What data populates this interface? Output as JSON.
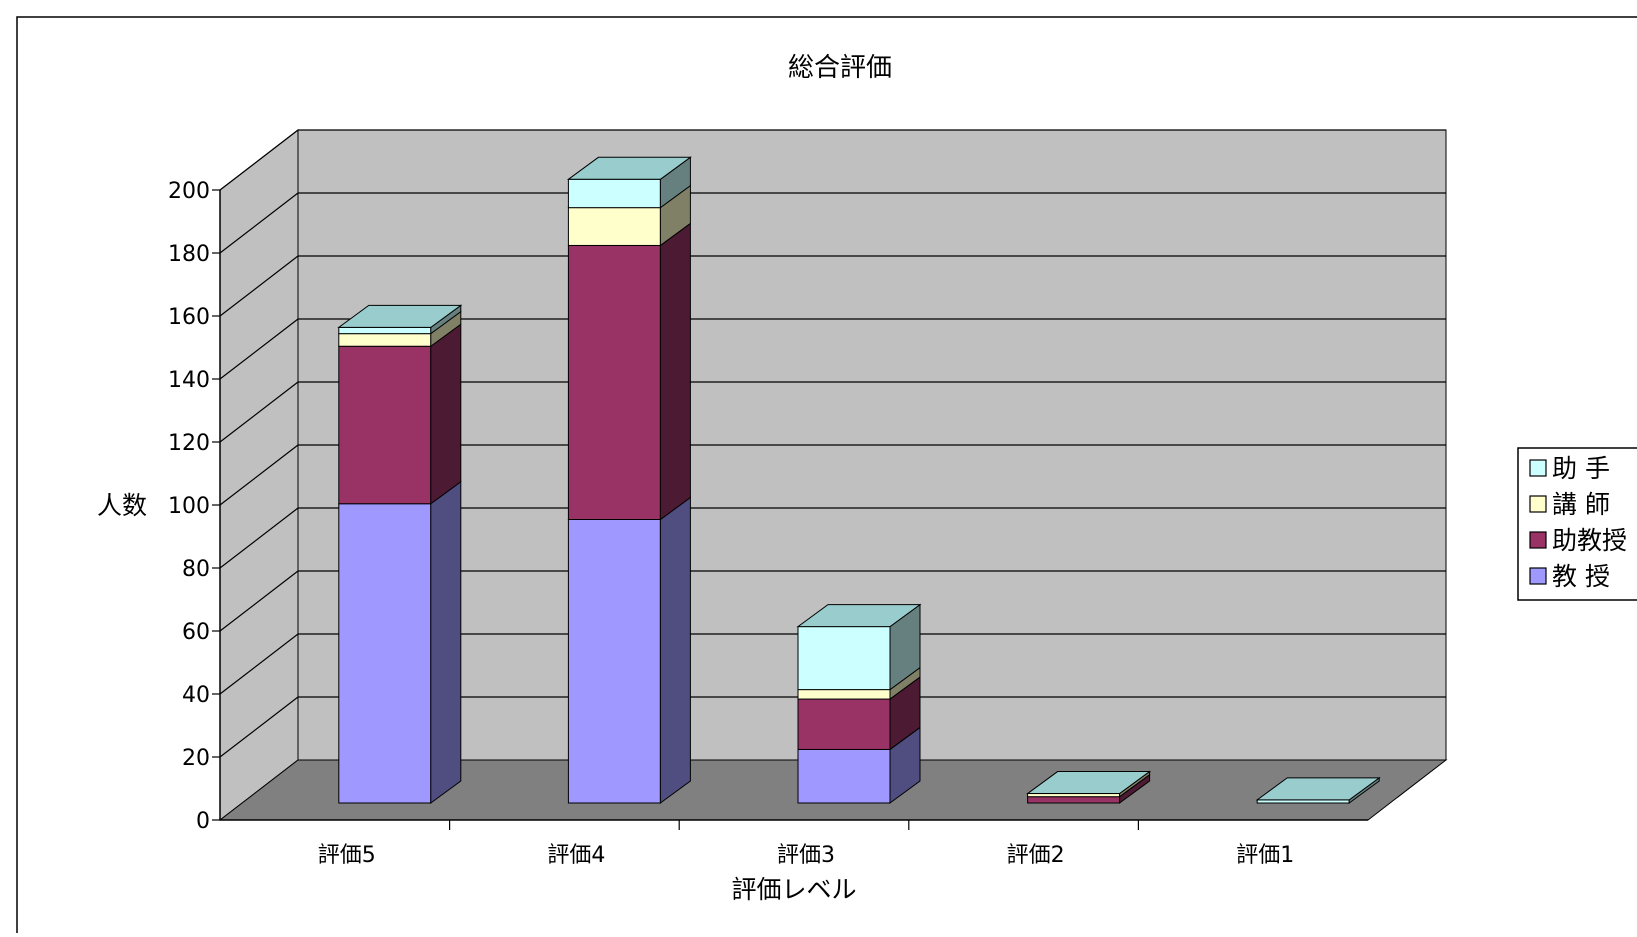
{
  "chart_data": {
    "type": "bar",
    "stacked": true,
    "view": "3d",
    "title": "総合評価",
    "xlabel": "評価レベル",
    "ylabel": "人数",
    "ylim": [
      0,
      200
    ],
    "ytick_step": 20,
    "yticks": [
      "0",
      "20",
      "40",
      "60",
      "80",
      "100",
      "120",
      "140",
      "160",
      "180",
      "200"
    ],
    "grid": true,
    "legend_position": "right",
    "categories": [
      "評価5",
      "評価4",
      "評価3",
      "評価2",
      "評価1"
    ],
    "series": [
      {
        "name": "教 授",
        "values": [
          95,
          90,
          17,
          0,
          0
        ],
        "color": "#9f99ff"
      },
      {
        "name": "助教授",
        "values": [
          50,
          87,
          16,
          2,
          0
        ],
        "color": "#993366"
      },
      {
        "name": "講 師",
        "values": [
          4,
          12,
          3,
          1,
          0
        ],
        "color": "#ffffcc"
      },
      {
        "name": "助 手",
        "values": [
          2,
          9,
          20,
          0,
          1
        ],
        "color": "#ccffff"
      }
    ],
    "legend_order": [
      "助 手",
      "講 師",
      "助教授",
      "教 授"
    ],
    "colors": {
      "wall": "#c0c0c0",
      "floor": "#808080",
      "bar_top": "#99cccc"
    }
  }
}
